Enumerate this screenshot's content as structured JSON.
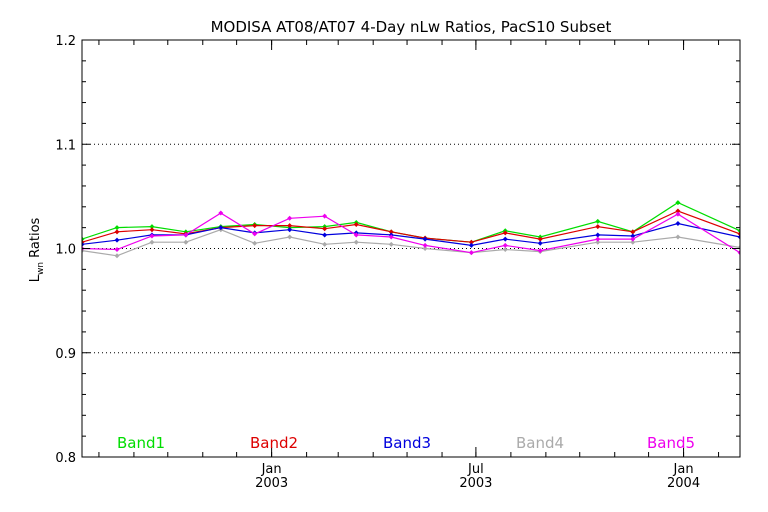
{
  "chart_data": {
    "type": "line",
    "title": "MODISA AT08/AT07 4-Day nLw Ratios, PacS10 Subset",
    "ylabel_main": "L",
    "ylabel_sub": "wn",
    "ylabel_rest": " Ratios",
    "xlabel": "",
    "ylim": [
      0.8,
      1.2
    ],
    "xlim": [
      "2002-07-17",
      "2004-02-20"
    ],
    "grid": "horizontal-dotted",
    "y_ticks": [
      "0.8",
      "0.9",
      "1.0",
      "1.1",
      "1.2"
    ],
    "x_ticks": [
      {
        "date": "2003-01-01",
        "month": "Jan",
        "year": "2003"
      },
      {
        "date": "2003-07-01",
        "month": "Jul",
        "year": "2003"
      },
      {
        "date": "2004-01-01",
        "month": "Jan",
        "year": "2004"
      }
    ],
    "legend_position": "bottom",
    "x": [
      "2002-07-17",
      "2002-08-17",
      "2002-09-17",
      "2002-10-17",
      "2002-11-17",
      "2002-12-17",
      "2003-01-17",
      "2003-02-17",
      "2003-03-17",
      "2003-04-17",
      "2003-05-17",
      "2003-06-27",
      "2003-07-27",
      "2003-08-27",
      "2003-10-17",
      "2003-11-17",
      "2003-12-27",
      "2004-02-20"
    ],
    "series": [
      {
        "name": "Band1",
        "color": "#00dd00",
        "values": [
          1.009,
          1.02,
          1.021,
          1.016,
          1.021,
          1.023,
          1.02,
          1.021,
          1.025,
          1.016,
          1.01,
          1.006,
          1.017,
          1.011,
          1.026,
          1.016,
          1.044,
          1.017
        ]
      },
      {
        "name": "Band2",
        "color": "#dd0000",
        "values": [
          1.006,
          1.016,
          1.018,
          1.014,
          1.02,
          1.022,
          1.022,
          1.019,
          1.023,
          1.016,
          1.01,
          1.006,
          1.015,
          1.009,
          1.021,
          1.016,
          1.036,
          1.014
        ]
      },
      {
        "name": "Band3",
        "color": "#0000dd",
        "values": [
          1.004,
          1.008,
          1.013,
          1.013,
          1.02,
          1.015,
          1.018,
          1.013,
          1.015,
          1.013,
          1.009,
          1.003,
          1.009,
          1.005,
          1.013,
          1.012,
          1.024,
          1.011
        ]
      },
      {
        "name": "Band4",
        "color": "#aaaaaa",
        "values": [
          0.998,
          0.993,
          1.006,
          1.006,
          1.018,
          1.005,
          1.011,
          1.004,
          1.006,
          1.004,
          1.0,
          0.996,
          0.999,
          0.997,
          1.006,
          1.006,
          1.011,
          1.001
        ]
      },
      {
        "name": "Band5",
        "color": "#ee00ee",
        "values": [
          1.0,
          0.999,
          1.012,
          1.013,
          1.034,
          1.014,
          1.029,
          1.031,
          1.013,
          1.011,
          1.003,
          0.996,
          1.003,
          0.998,
          1.009,
          1.009,
          1.033,
          0.996
        ]
      }
    ]
  }
}
